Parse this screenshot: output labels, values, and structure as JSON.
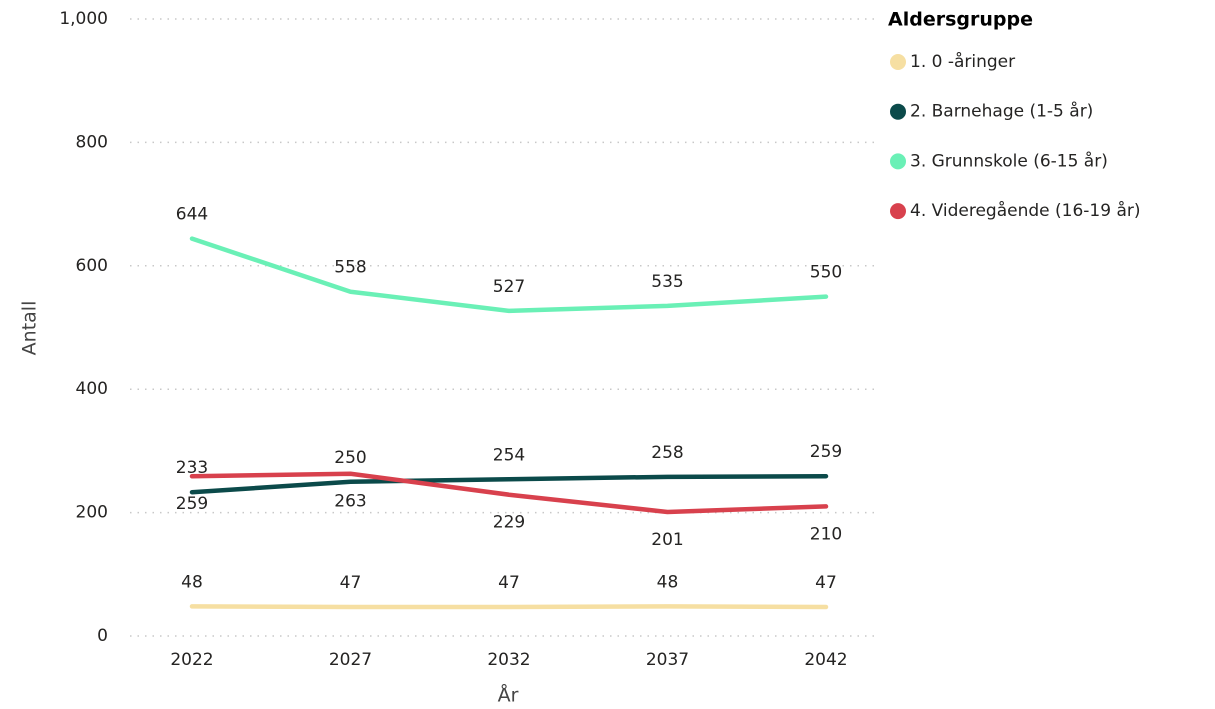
{
  "chart_data": {
    "type": "line",
    "categories": [
      "2022",
      "2027",
      "2032",
      "2037",
      "2042"
    ],
    "series": [
      {
        "name": "1. 0 -åringer",
        "color": "#f6dfa2",
        "values": [
          48,
          47,
          47,
          48,
          47
        ]
      },
      {
        "name": "2. Barnehage (1-5 år)",
        "color": "#0b4a4a",
        "values": [
          233,
          250,
          254,
          258,
          259
        ]
      },
      {
        "name": "3. Grunnskole (6-15 år)",
        "color": "#6af0b6",
        "values": [
          644,
          558,
          527,
          535,
          550
        ]
      },
      {
        "name": "4. Videregående (16-19 år)",
        "color": "#d8414d",
        "values": [
          259,
          263,
          229,
          201,
          210
        ]
      }
    ],
    "legend_title": "Aldersgruppe",
    "ylabel": "Antall",
    "xlabel": "År",
    "ylim": [
      0,
      1000
    ],
    "yticks": [
      0,
      200,
      400,
      600,
      800,
      {
        "value": 1000,
        "label": "1,000"
      }
    ],
    "grid": true
  }
}
